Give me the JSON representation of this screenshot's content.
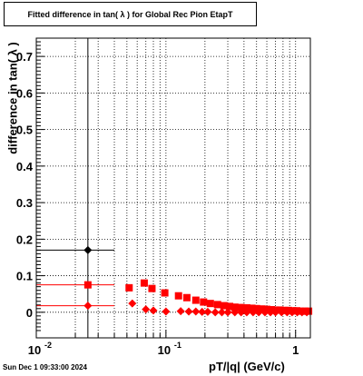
{
  "title": "Fitted difference in tan( λ ) for Global Rec Pion EtapT",
  "timestamp": "Sun Dec  1 09:33:00 2024",
  "chart_data": {
    "type": "scatter",
    "title": "Fitted difference in tan( λ ) for Global Rec Pion EtapT",
    "xlabel": "pT/|q| (GeV/c)",
    "ylabel": "difference in tan( λ )",
    "xscale": "log",
    "xlim": [
      0.01,
      1.3
    ],
    "ylim": [
      -0.07,
      0.75
    ],
    "grid": true,
    "yticks": [
      0,
      0.1,
      0.2,
      0.3,
      0.4,
      0.5,
      0.6,
      0.7
    ],
    "ytick_labels": [
      "0",
      "0.1",
      "0.2",
      "0.3",
      "0.4",
      "0.5",
      "0.6",
      "0.7"
    ],
    "xticks": [
      0.01,
      0.1,
      1
    ],
    "xtick_labels": [
      "10^-2",
      "10^-1",
      "1"
    ],
    "series": [
      {
        "color": "#000000",
        "marker": "diamond",
        "points": [
          {
            "x": 0.025,
            "y": 0.17,
            "xlo": 0.01,
            "xhi": 0.04,
            "ylo": -0.07,
            "yhi": 0.75
          }
        ]
      },
      {
        "color": "#ff0000",
        "marker": "square",
        "points": [
          {
            "x": 0.025,
            "y": 0.075,
            "xlo": 0.01,
            "xhi": 0.04
          },
          {
            "x": 0.052,
            "y": 0.067
          },
          {
            "x": 0.068,
            "y": 0.08
          },
          {
            "x": 0.078,
            "y": 0.065
          },
          {
            "x": 0.098,
            "y": 0.053
          },
          {
            "x": 0.125,
            "y": 0.045
          },
          {
            "x": 0.145,
            "y": 0.04
          },
          {
            "x": 0.17,
            "y": 0.033
          },
          {
            "x": 0.195,
            "y": 0.028
          },
          {
            "x": 0.22,
            "y": 0.024
          },
          {
            "x": 0.25,
            "y": 0.021
          },
          {
            "x": 0.28,
            "y": 0.018
          },
          {
            "x": 0.31,
            "y": 0.016
          },
          {
            "x": 0.34,
            "y": 0.014
          },
          {
            "x": 0.38,
            "y": 0.013
          },
          {
            "x": 0.42,
            "y": 0.012
          },
          {
            "x": 0.46,
            "y": 0.011
          },
          {
            "x": 0.5,
            "y": 0.01
          },
          {
            "x": 0.55,
            "y": 0.009
          },
          {
            "x": 0.6,
            "y": 0.008
          },
          {
            "x": 0.65,
            "y": 0.007
          },
          {
            "x": 0.7,
            "y": 0.006
          },
          {
            "x": 0.76,
            "y": 0.006
          },
          {
            "x": 0.82,
            "y": 0.005
          },
          {
            "x": 0.88,
            "y": 0.005
          },
          {
            "x": 0.95,
            "y": 0.004
          },
          {
            "x": 1.02,
            "y": 0.004
          },
          {
            "x": 1.1,
            "y": 0.003
          },
          {
            "x": 1.18,
            "y": 0.003
          },
          {
            "x": 1.26,
            "y": 0.003
          }
        ]
      },
      {
        "color": "#ff0000",
        "marker": "diamond",
        "points": [
          {
            "x": 0.025,
            "y": 0.018,
            "xlo": 0.01,
            "xhi": 0.04
          },
          {
            "x": 0.055,
            "y": 0.024
          },
          {
            "x": 0.07,
            "y": 0.008
          },
          {
            "x": 0.08,
            "y": 0.005
          },
          {
            "x": 0.1,
            "y": 0.002
          },
          {
            "x": 0.13,
            "y": 0.003
          },
          {
            "x": 0.15,
            "y": 0.002
          },
          {
            "x": 0.17,
            "y": 0.002
          },
          {
            "x": 0.19,
            "y": 0.001
          },
          {
            "x": 0.21,
            "y": 0.001
          },
          {
            "x": 0.24,
            "y": 0.0
          },
          {
            "x": 0.27,
            "y": 0.0
          },
          {
            "x": 0.3,
            "y": 0.0
          },
          {
            "x": 0.34,
            "y": 0.0
          },
          {
            "x": 0.38,
            "y": 0.0
          },
          {
            "x": 0.42,
            "y": 0.0
          },
          {
            "x": 0.47,
            "y": 0.0
          },
          {
            "x": 0.52,
            "y": 0.0
          },
          {
            "x": 0.58,
            "y": 0.0
          },
          {
            "x": 0.64,
            "y": 0.0
          },
          {
            "x": 0.7,
            "y": 0.0
          },
          {
            "x": 0.78,
            "y": 0.0
          },
          {
            "x": 0.86,
            "y": 0.0
          },
          {
            "x": 0.94,
            "y": 0.0
          },
          {
            "x": 1.03,
            "y": 0.0
          },
          {
            "x": 1.12,
            "y": 0.0
          },
          {
            "x": 1.22,
            "y": 0.0
          }
        ]
      }
    ]
  }
}
